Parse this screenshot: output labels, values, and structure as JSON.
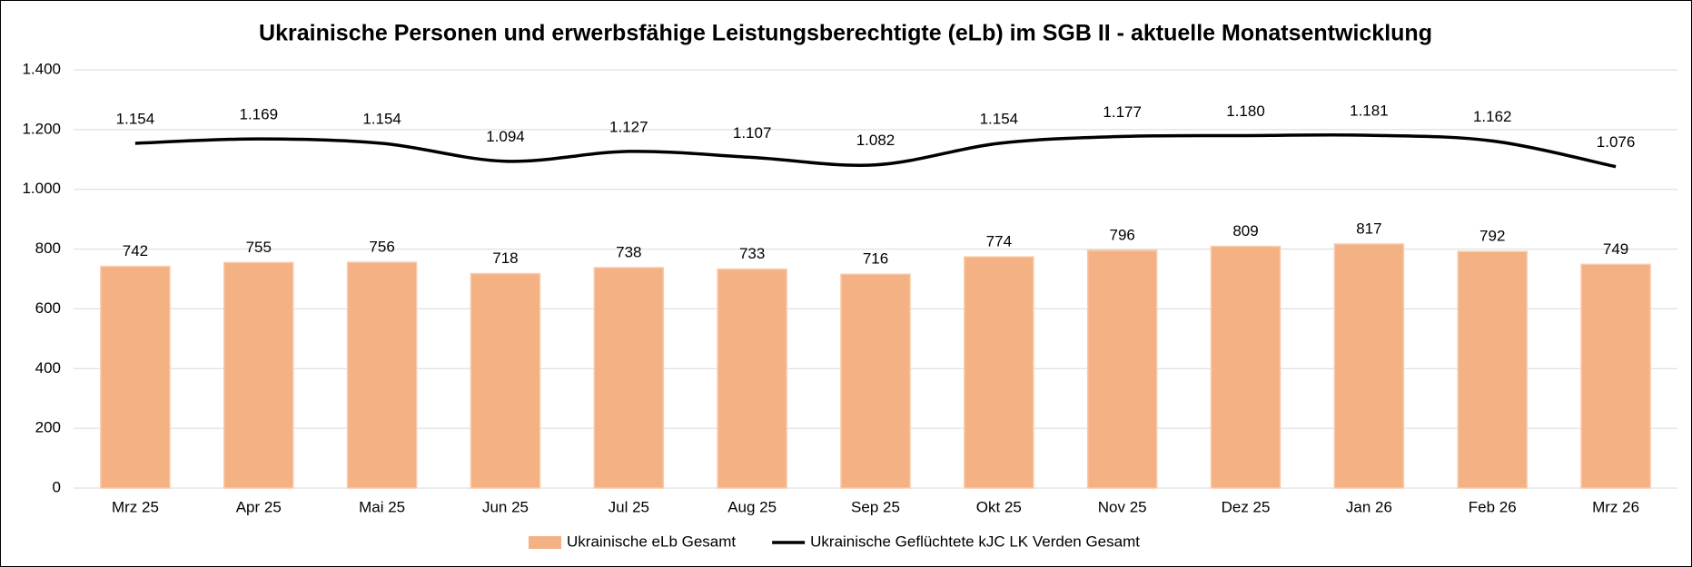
{
  "chart_data": {
    "type": "combo",
    "title": "Ukrainische Personen und erwerbsfähige Leistungsberechtigte (eLb) im SGB II - aktuelle Monatsentwicklung",
    "categories": [
      "Mrz 25",
      "Apr 25",
      "Mai 25",
      "Jun 25",
      "Jul 25",
      "Aug 25",
      "Sep 25",
      "Okt 25",
      "Nov 25",
      "Dez 25",
      "Jan 26",
      "Feb 26",
      "Mrz 26"
    ],
    "series": [
      {
        "name": "Ukrainische eLb Gesamt",
        "type": "bar",
        "color": "#f4b183",
        "values": [
          742,
          755,
          756,
          718,
          738,
          733,
          716,
          774,
          796,
          809,
          817,
          792,
          749
        ]
      },
      {
        "name": "Ukrainische Geflüchtete kJC LK Verden Gesamt",
        "type": "line",
        "color": "#000000",
        "values": [
          1154,
          1169,
          1154,
          1094,
          1127,
          1107,
          1082,
          1154,
          1177,
          1180,
          1181,
          1162,
          1076
        ],
        "value_labels": [
          "1.154",
          "1.169",
          "1.154",
          "1.094",
          "1.127",
          "1.107",
          "1.082",
          "1.154",
          "1.177",
          "1.180",
          "1.181",
          "1.162",
          "1.076"
        ]
      }
    ],
    "ylim": [
      0,
      1400
    ],
    "yticks": [
      0,
      200,
      400,
      600,
      800,
      {
        "value": 1000,
        "label": "1.000"
      },
      {
        "value": 1200,
        "label": "1.200"
      },
      {
        "value": 1400,
        "label": "1.400"
      }
    ],
    "grid": true,
    "legend": "bottom"
  }
}
